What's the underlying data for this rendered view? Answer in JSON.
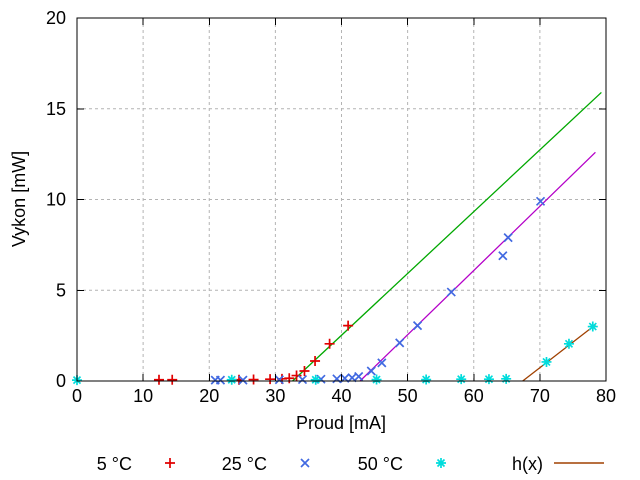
{
  "chart_data": {
    "type": "scatter",
    "title": "",
    "xlabel": "Proud [mA]",
    "ylabel": "Vykon [mW]",
    "xlim": [
      0,
      80
    ],
    "ylim": [
      0,
      20
    ],
    "xticks": [
      0,
      10,
      20,
      30,
      40,
      50,
      60,
      70,
      80
    ],
    "yticks": [
      0,
      5,
      10,
      15,
      20
    ],
    "grid": true,
    "grid_color": "#b4b4b4",
    "text_color": "#000000",
    "border_color": "#000000",
    "series": [
      {
        "id": "temp-5c",
        "label": "5 °C",
        "kind": "points",
        "marker": "plus",
        "color": "#e00000",
        "points": [
          [
            12.4,
            0.07
          ],
          [
            14.4,
            0.07
          ],
          [
            24.5,
            0.07
          ],
          [
            26.7,
            0.08
          ],
          [
            29.2,
            0.1
          ],
          [
            31.0,
            0.12
          ],
          [
            32.1,
            0.15
          ],
          [
            33.2,
            0.3
          ],
          [
            34.4,
            0.55
          ],
          [
            36.0,
            1.1
          ],
          [
            38.2,
            2.05
          ],
          [
            41.0,
            3.05
          ]
        ]
      },
      {
        "id": "temp-25c",
        "label": "25 °C",
        "kind": "points",
        "marker": "cross",
        "color": "#4169e1",
        "points": [
          [
            20.9,
            0.05
          ],
          [
            21.7,
            0.05
          ],
          [
            25.1,
            0.05
          ],
          [
            30.6,
            0.07
          ],
          [
            34.1,
            0.08
          ],
          [
            36.9,
            0.1
          ],
          [
            39.3,
            0.12
          ],
          [
            40.5,
            0.15
          ],
          [
            41.6,
            0.18
          ],
          [
            42.6,
            0.25
          ],
          [
            44.5,
            0.55
          ],
          [
            46.1,
            1.0
          ],
          [
            48.8,
            2.1
          ],
          [
            51.5,
            3.05
          ],
          [
            56.6,
            4.9
          ],
          [
            64.4,
            6.9
          ],
          [
            65.2,
            7.9
          ],
          [
            70.1,
            9.9
          ]
        ]
      },
      {
        "id": "temp-50c",
        "label": "50 °C",
        "kind": "points",
        "marker": "star",
        "color": "#00dcdc",
        "points": [
          [
            0,
            0.05
          ],
          [
            23.4,
            0.07
          ],
          [
            36.1,
            0.07
          ],
          [
            45.3,
            0.08
          ],
          [
            52.8,
            0.08
          ],
          [
            58.1,
            0.1
          ],
          [
            62.3,
            0.1
          ],
          [
            64.9,
            0.12
          ],
          [
            71.0,
            1.05
          ],
          [
            74.4,
            2.05
          ],
          [
            78.0,
            3.0
          ]
        ]
      },
      {
        "id": "fit-5c",
        "label": "",
        "kind": "line",
        "color": "#00a800",
        "points": [
          [
            32.6,
            0
          ],
          [
            79.3,
            15.9
          ]
        ]
      },
      {
        "id": "fit-25c",
        "label": "",
        "kind": "line",
        "color": "#b400c8",
        "points": [
          [
            42.8,
            0
          ],
          [
            78.4,
            12.6
          ]
        ]
      },
      {
        "id": "h-fit",
        "label": "h(x)",
        "kind": "line",
        "color": "#a04000",
        "points": [
          [
            67.4,
            0
          ],
          [
            78.4,
            3.1
          ]
        ]
      }
    ],
    "legend": {
      "position": "bottom",
      "entries": [
        {
          "label": "5 °C",
          "marker": "plus",
          "color": "#e00000"
        },
        {
          "label": "25 °C",
          "marker": "cross",
          "color": "#4169e1"
        },
        {
          "label": "50 °C",
          "marker": "star",
          "color": "#00dcdc"
        },
        {
          "label": "h(x)",
          "marker": "line",
          "color": "#a04000"
        }
      ]
    }
  }
}
